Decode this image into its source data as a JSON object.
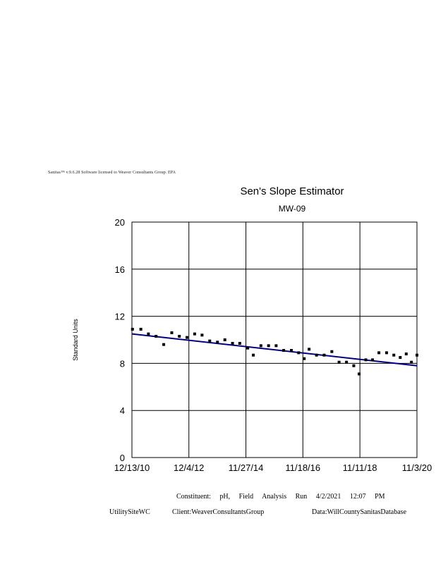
{
  "header": {
    "software_line": "Sanitas™ v.9.6.28 Software licensed to Weaver Consultants Group. EPA"
  },
  "chart_data": {
    "type": "scatter",
    "title": "Sen's Slope Estimator",
    "subtitle": "MW-09",
    "xlabel": "",
    "ylabel": "Standard Units",
    "x_type": "date",
    "xlim": [
      "2010-12-13",
      "2020-11-03"
    ],
    "x_ticks": [
      "2010-12-13",
      "2012-12-04",
      "2014-11-27",
      "2016-11-18",
      "2018-11-11",
      "2020-11-03"
    ],
    "x_tick_labels": [
      "12/13/10",
      "12/4/12",
      "11/27/14",
      "11/18/16",
      "11/11/18",
      "11/3/20"
    ],
    "ylim": [
      0,
      20
    ],
    "y_ticks": [
      0,
      4,
      8,
      12,
      16,
      20
    ],
    "y_tick_labels": [
      "0",
      "4",
      "8",
      "12",
      "16",
      "20"
    ],
    "grid": true,
    "series": [
      {
        "type": "scatter",
        "color": "#000000",
        "points": [
          {
            "x": "2010-12-20",
            "y": 10.9
          },
          {
            "x": "2011-04-05",
            "y": 10.9
          },
          {
            "x": "2011-07-10",
            "y": 10.5
          },
          {
            "x": "2011-10-15",
            "y": 10.3
          },
          {
            "x": "2012-01-20",
            "y": 9.6
          },
          {
            "x": "2012-05-01",
            "y": 10.6
          },
          {
            "x": "2012-08-05",
            "y": 10.3
          },
          {
            "x": "2012-11-10",
            "y": 10.2
          },
          {
            "x": "2013-02-15",
            "y": 10.5
          },
          {
            "x": "2013-05-20",
            "y": 10.4
          },
          {
            "x": "2013-08-25",
            "y": 9.9
          },
          {
            "x": "2013-12-01",
            "y": 9.8
          },
          {
            "x": "2014-03-05",
            "y": 10.0
          },
          {
            "x": "2014-06-10",
            "y": 9.7
          },
          {
            "x": "2014-09-10",
            "y": 9.7
          },
          {
            "x": "2014-12-20",
            "y": 9.3
          },
          {
            "x": "2015-03-01",
            "y": 8.7
          },
          {
            "x": "2015-06-05",
            "y": 9.5
          },
          {
            "x": "2015-09-10",
            "y": 9.5
          },
          {
            "x": "2015-12-15",
            "y": 9.5
          },
          {
            "x": "2016-03-20",
            "y": 9.1
          },
          {
            "x": "2016-06-25",
            "y": 9.1
          },
          {
            "x": "2016-09-25",
            "y": 8.9
          },
          {
            "x": "2016-12-05",
            "y": 8.4
          },
          {
            "x": "2017-02-05",
            "y": 9.2
          },
          {
            "x": "2017-05-10",
            "y": 8.7
          },
          {
            "x": "2017-08-15",
            "y": 8.7
          },
          {
            "x": "2017-11-20",
            "y": 9.0
          },
          {
            "x": "2018-02-20",
            "y": 8.1
          },
          {
            "x": "2018-05-25",
            "y": 8.1
          },
          {
            "x": "2018-08-25",
            "y": 7.8
          },
          {
            "x": "2018-11-01",
            "y": 7.1
          },
          {
            "x": "2019-01-25",
            "y": 8.3
          },
          {
            "x": "2019-04-20",
            "y": 8.3
          },
          {
            "x": "2019-07-10",
            "y": 8.9
          },
          {
            "x": "2019-10-15",
            "y": 8.9
          },
          {
            "x": "2020-01-15",
            "y": 8.7
          },
          {
            "x": "2020-04-05",
            "y": 8.5
          },
          {
            "x": "2020-06-20",
            "y": 8.8
          },
          {
            "x": "2020-08-25",
            "y": 8.1
          },
          {
            "x": "2020-11-03",
            "y": 8.7
          }
        ]
      },
      {
        "type": "line",
        "color": "#000080",
        "points": [
          {
            "x": "2010-12-13",
            "y": 10.5
          },
          {
            "x": "2020-11-03",
            "y": 7.8
          }
        ]
      }
    ]
  },
  "footer": {
    "constituent": "Constituent: pH, Field Analysis Run 4/2/2021 12:07 PM",
    "site": "UtilitySiteWC",
    "client": "Client:WeaverConsultantsGroup",
    "data": "Data:WillCountySanitasDatabase"
  }
}
